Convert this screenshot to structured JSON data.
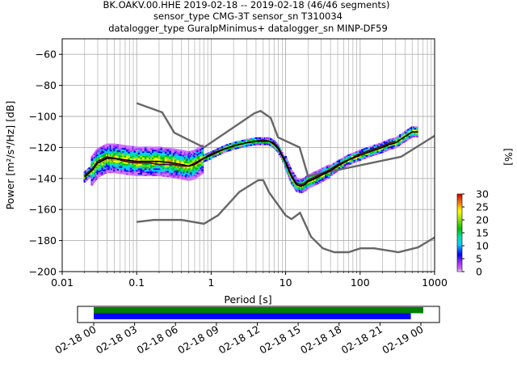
{
  "figure": {
    "title_lines": [
      "BK.OAKV.00.HHE   2019-02-18 -- 2019-02-18  (46/46 segments)",
      "sensor_type CMG-3T sensor_sn T310034",
      "datalogger_type GuralpMinimus+ datalogger_sn MINP-DF59"
    ]
  },
  "chart_data": [
    {
      "type": "heatmap",
      "title": "BK.OAKV.00.HHE   2019-02-18 -- 2019-02-18  (46/46 segments)",
      "xlabel": "Period [s]",
      "ylabel": "Power [m²/s⁴/Hz] [dB]",
      "xscale": "log",
      "xlim": [
        0.01,
        1000
      ],
      "ylim": [
        -200,
        -50
      ],
      "x_tick_labels": [
        "0.01",
        "0.1",
        "1",
        "10",
        "100",
        "1000"
      ],
      "x_ticks": [
        0.01,
        0.1,
        1,
        10,
        100,
        1000
      ],
      "y_ticks": [
        -200,
        -180,
        -160,
        -140,
        -120,
        -100,
        -80,
        -60
      ],
      "y_tick_labels": [
        "−200",
        "−180",
        "−160",
        "−140",
        "−120",
        "−100",
        "−80",
        "−60"
      ],
      "grid": true,
      "colorbar": {
        "label": "[%]",
        "range": [
          0,
          30
        ],
        "ticks": [
          0,
          5,
          10,
          15,
          20,
          25,
          30
        ],
        "tick_labels": [
          "0",
          "5",
          "10",
          "15",
          "20",
          "25",
          "30"
        ]
      },
      "noise_models": [
        {
          "name": "NHNM",
          "period": [
            0.1,
            0.22,
            0.32,
            0.8,
            3.8,
            4.6,
            6.3,
            7.9,
            15.4,
            20,
            354.8,
            1000
          ],
          "power": [
            -91.5,
            -97.4,
            -110.5,
            -120,
            -98,
            -96.5,
            -101,
            -113.5,
            -120,
            -138.5,
            -126,
            -112.5
          ]
        },
        {
          "name": "NLNM",
          "period": [
            0.1,
            0.17,
            0.4,
            0.8,
            1.24,
            2.4,
            4.3,
            5,
            6,
            10,
            12,
            15.6,
            21.9,
            31.6,
            45,
            70,
            101,
            154,
            328,
            600,
            1000
          ],
          "power": [
            -168,
            -166.7,
            -166.7,
            -169.2,
            -163.7,
            -148.6,
            -141.1,
            -141.1,
            -149,
            -163.8,
            -166.2,
            -162.1,
            -177.5,
            -185,
            -187.5,
            -187.5,
            -185,
            -185,
            -187.5,
            -184.4,
            -178
          ]
        }
      ],
      "series": [
        {
          "name": "mode",
          "period": [
            0.02,
            0.025,
            0.03,
            0.04,
            0.05,
            0.07,
            0.1,
            0.15,
            0.2,
            0.3,
            0.4,
            0.5,
            0.6,
            0.8,
            1,
            1.5,
            2,
            3,
            4,
            5,
            6,
            7,
            8,
            10,
            12,
            14,
            16,
            18,
            20,
            25,
            30,
            40,
            50,
            70,
            100,
            150,
            200,
            250,
            300,
            400,
            500,
            600
          ],
          "power": [
            -139,
            -135,
            -130,
            -127,
            -127,
            -128,
            -129,
            -129,
            -129,
            -130,
            -131,
            -132,
            -131,
            -127,
            -125,
            -121,
            -119,
            -117,
            -116,
            -116,
            -116,
            -118,
            -121,
            -130,
            -139,
            -144,
            -145,
            -144,
            -142,
            -140,
            -138,
            -135,
            -132,
            -128,
            -125,
            -122,
            -120,
            -118,
            -117,
            -113,
            -110,
            -110
          ]
        },
        {
          "name": "mean",
          "period": [
            0.02,
            0.025,
            0.03,
            0.04,
            0.05,
            0.07,
            0.1,
            0.15,
            0.2,
            0.3,
            0.4,
            0.5,
            0.6,
            0.8,
            1,
            1.5,
            2,
            3,
            4,
            5,
            6,
            7,
            8,
            10,
            12,
            14,
            16,
            18,
            20,
            25,
            30,
            40,
            50,
            70,
            100,
            150,
            200,
            250,
            300
          ],
          "power": [
            -138,
            -134,
            -129,
            -126,
            -127,
            -129,
            -130,
            -130,
            -131,
            -131,
            -132,
            -132,
            -130,
            -127,
            -124,
            -121,
            -119,
            -117,
            -116,
            -115,
            -116,
            -117,
            -120,
            -129,
            -138,
            -143,
            -144,
            -143,
            -141,
            -139,
            -137,
            -134,
            -131,
            -128,
            -124,
            -121,
            -119,
            -117,
            -116
          ]
        }
      ]
    },
    {
      "type": "timeline",
      "xlim_labels": [
        "02-18 00",
        "02-19 00"
      ],
      "tick_labels": [
        "02-18 00",
        "02-18 03",
        "02-18 06",
        "02-18 09",
        "02-18 12",
        "02-18 15",
        "02-18 18",
        "02-18 21",
        "02-19 00"
      ],
      "bars": [
        {
          "name": "data coverage",
          "color": "#008000",
          "start_hour": 0,
          "end_hour": 24.0
        },
        {
          "name": "psd coverage",
          "color": "#0000ff",
          "start_hour": 0,
          "end_hour": 23.5
        }
      ]
    }
  ],
  "colors": {
    "noise_model": "#666666",
    "mode_line": "#000000",
    "mean_line": "#4a0033",
    "grid": "#b0b0b0",
    "timeline_green": "#008000",
    "timeline_blue": "#0000ff"
  }
}
